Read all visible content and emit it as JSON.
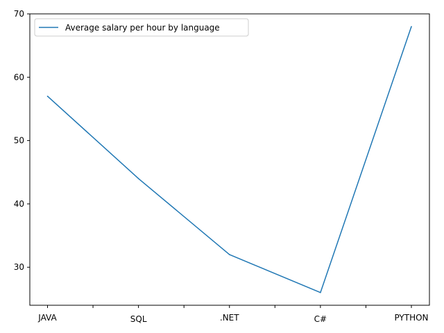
{
  "chart_data": {
    "type": "line",
    "categories": [
      "JAVA",
      "SQL",
      ".NET",
      "C#",
      "PYTHON"
    ],
    "series": [
      {
        "name": "Average salary per hour by language",
        "values": [
          57,
          44,
          32,
          26,
          68
        ]
      }
    ],
    "ylim": [
      24,
      70
    ],
    "yticks": [
      30,
      40,
      50,
      60,
      70
    ],
    "grid": false,
    "legend_position": "top-left",
    "line_color": "#1f77b4"
  }
}
